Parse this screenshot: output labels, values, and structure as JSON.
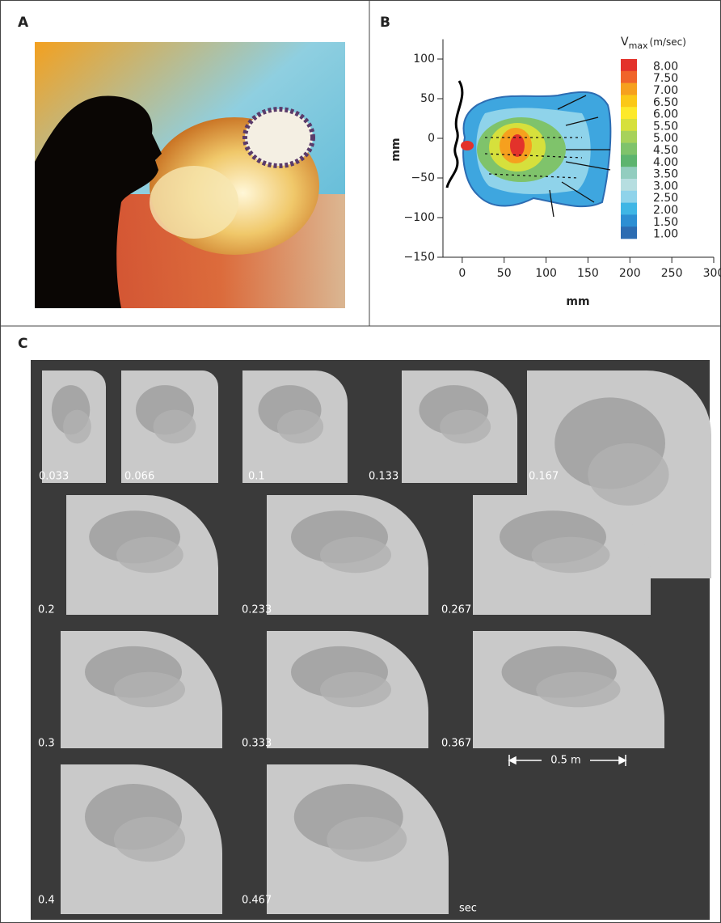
{
  "figure": {
    "panel_labels": [
      "A",
      "B",
      "C"
    ],
    "frames": [
      "0.033",
      "0.066",
      "0.1",
      "0.133",
      "0.167",
      "0.2",
      "0.233",
      "0.267",
      "0.3",
      "0.333",
      "0.367",
      "0.4",
      "0.467"
    ],
    "time_unit": "sec",
    "scale_bar": "0.5 m"
  },
  "chart_data": {
    "type": "contour",
    "x_label": "mm",
    "y_label": "mm",
    "xlim": [
      -23,
      300
    ],
    "ylim": [
      -150,
      125
    ],
    "xticks": [
      0,
      50,
      100,
      150,
      200,
      250,
      300
    ],
    "yticks": [
      100,
      50,
      0,
      {
        "value": -50,
        "label": "−50"
      },
      {
        "value": -100,
        "label": "−100"
      },
      {
        "value": -150,
        "label": "−150"
      }
    ],
    "colorbar": {
      "symbol": "V",
      "subscript": "max",
      "unit": "(m/sec)",
      "levels": [
        {
          "value": 8,
          "label": "8.00"
        },
        {
          "value": 7.5,
          "label": "7.50"
        },
        {
          "value": 7,
          "label": "7.00"
        },
        {
          "value": 6.5,
          "label": "6.50"
        },
        {
          "value": 6,
          "label": "6.00"
        },
        {
          "value": 5.5,
          "label": "5.50"
        },
        {
          "value": 5,
          "label": "5.00"
        },
        {
          "value": 4.5,
          "label": "4.50"
        },
        {
          "value": 4,
          "label": "4.00"
        },
        {
          "value": 3.5,
          "label": "3.50"
        },
        {
          "value": 3,
          "label": "3.00"
        },
        {
          "value": 2.5,
          "label": "2.50"
        },
        {
          "value": 2,
          "label": "2.00"
        },
        {
          "value": 1.5,
          "label": "1.50"
        },
        {
          "value": 1,
          "label": "1.00"
        }
      ],
      "colors": [
        "#e3322b",
        "#f0642a",
        "#f6a01e",
        "#fbc817",
        "#fde92a",
        "#d6e03c",
        "#a7d25a",
        "#7fc36b",
        "#5db46f",
        "#92cdbf",
        "#b6dee0",
        "#8fd3ea",
        "#3fb6e5",
        "#2d8fd3",
        "#2c6cb2"
      ]
    }
  }
}
